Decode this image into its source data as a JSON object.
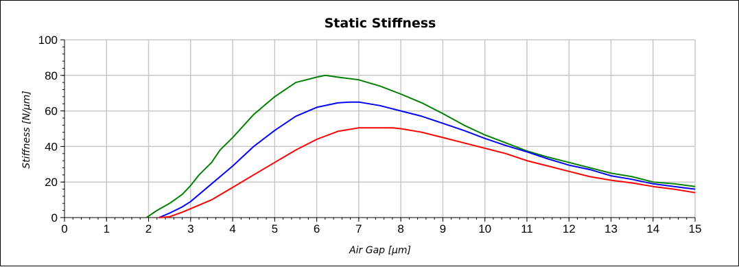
{
  "chart_data": {
    "type": "line",
    "title": "Static Stiffness",
    "xlabel": "Air Gap [µm]",
    "ylabel": "Stiffness [N/µm]",
    "xlim": [
      0,
      15
    ],
    "ylim": [
      0,
      100
    ],
    "x_ticks": [
      "0",
      "1",
      "2",
      "3",
      "4",
      "5",
      "6",
      "7",
      "8",
      "9",
      "10",
      "11",
      "12",
      "13",
      "14",
      "15"
    ],
    "y_ticks": [
      "0",
      "20",
      "40",
      "60",
      "80",
      "100"
    ],
    "grid": true,
    "legend": "none",
    "series": [
      {
        "color": "#008000",
        "points": [
          [
            1.95,
            0
          ],
          [
            2.2,
            4
          ],
          [
            2.5,
            8
          ],
          [
            2.8,
            13
          ],
          [
            3.0,
            18
          ],
          [
            3.2,
            24
          ],
          [
            3.5,
            31
          ],
          [
            3.7,
            38
          ],
          [
            4.0,
            45
          ],
          [
            4.5,
            58
          ],
          [
            5.0,
            68
          ],
          [
            5.5,
            76
          ],
          [
            6.0,
            79
          ],
          [
            6.2,
            80
          ],
          [
            6.5,
            79
          ],
          [
            7.0,
            77.5
          ],
          [
            7.5,
            74
          ],
          [
            8.0,
            69.5
          ],
          [
            8.5,
            64.5
          ],
          [
            9.0,
            58.5
          ],
          [
            9.5,
            52
          ],
          [
            10.0,
            46.5
          ],
          [
            10.5,
            42
          ],
          [
            11.0,
            37.5
          ],
          [
            11.5,
            34
          ],
          [
            12.0,
            31
          ],
          [
            12.5,
            28
          ],
          [
            13.0,
            25
          ],
          [
            13.5,
            23
          ],
          [
            14.0,
            20
          ],
          [
            14.5,
            19
          ],
          [
            15.0,
            17.5
          ]
        ]
      },
      {
        "color": "#0000ff",
        "points": [
          [
            2.25,
            0
          ],
          [
            2.5,
            2.5
          ],
          [
            2.8,
            6
          ],
          [
            3.0,
            9
          ],
          [
            3.5,
            19
          ],
          [
            4.0,
            29
          ],
          [
            4.5,
            40
          ],
          [
            5.0,
            49
          ],
          [
            5.5,
            57
          ],
          [
            6.0,
            62
          ],
          [
            6.5,
            64.5
          ],
          [
            6.8,
            65
          ],
          [
            7.0,
            65
          ],
          [
            7.5,
            63
          ],
          [
            8.0,
            60
          ],
          [
            8.5,
            57
          ],
          [
            9.0,
            53
          ],
          [
            9.5,
            49
          ],
          [
            10.0,
            44.5
          ],
          [
            10.5,
            40.5
          ],
          [
            11.0,
            37
          ],
          [
            11.5,
            33
          ],
          [
            12.0,
            29.5
          ],
          [
            12.5,
            27
          ],
          [
            13.0,
            23.5
          ],
          [
            13.5,
            21.5
          ],
          [
            14.0,
            19
          ],
          [
            14.5,
            17.5
          ],
          [
            15.0,
            16
          ]
        ]
      },
      {
        "color": "#ff0000",
        "points": [
          [
            2.25,
            0
          ],
          [
            2.5,
            0.5
          ],
          [
            2.8,
            3
          ],
          [
            3.0,
            5
          ],
          [
            3.5,
            10
          ],
          [
            4.0,
            17
          ],
          [
            4.5,
            24
          ],
          [
            5.0,
            31
          ],
          [
            5.5,
            38
          ],
          [
            6.0,
            44
          ],
          [
            6.5,
            48.5
          ],
          [
            7.0,
            50.5
          ],
          [
            7.5,
            50.5
          ],
          [
            7.8,
            50.5
          ],
          [
            8.0,
            50
          ],
          [
            8.5,
            48
          ],
          [
            9.0,
            45
          ],
          [
            9.5,
            42
          ],
          [
            10.0,
            39
          ],
          [
            10.5,
            36
          ],
          [
            11.0,
            32
          ],
          [
            11.5,
            29
          ],
          [
            12.0,
            26
          ],
          [
            12.5,
            23
          ],
          [
            13.0,
            21
          ],
          [
            13.5,
            19.5
          ],
          [
            14.0,
            17.5
          ],
          [
            14.5,
            16
          ],
          [
            15.0,
            14
          ]
        ]
      }
    ]
  }
}
